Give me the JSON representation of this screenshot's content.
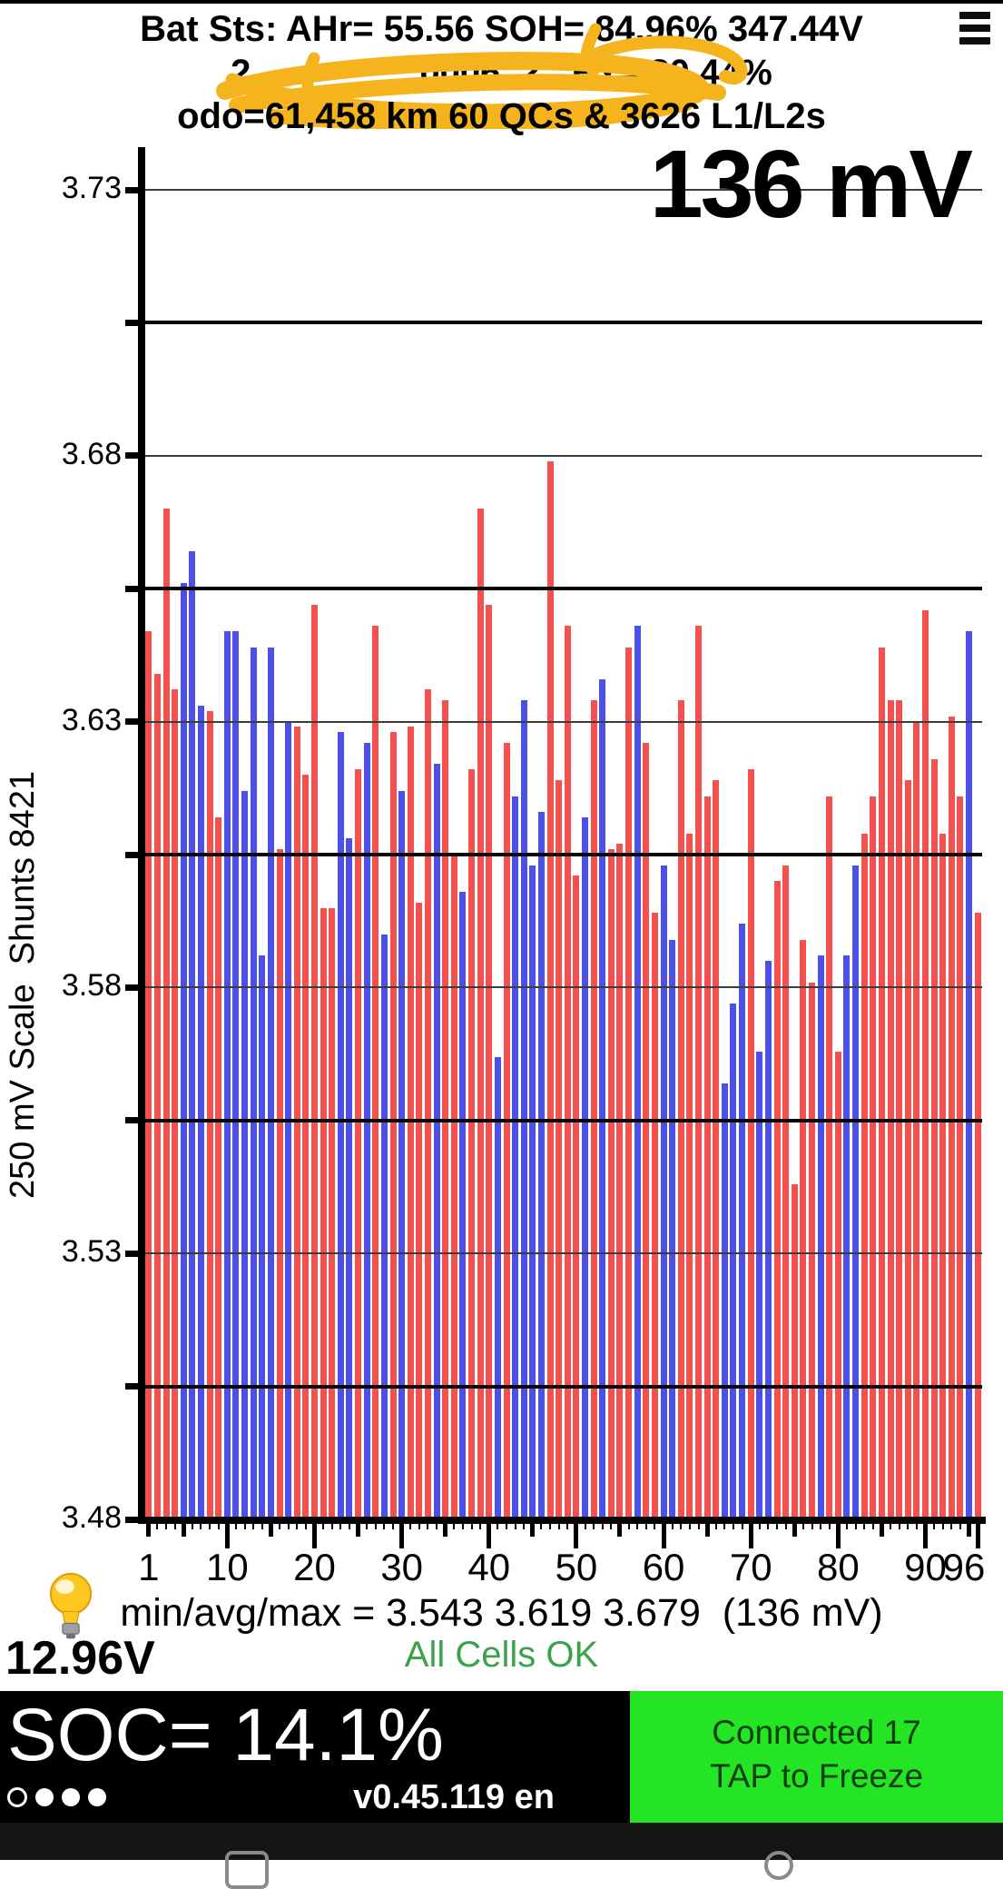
{
  "header": {
    "title": "Bat Sts: AHr= 55.56 SOH= 84.96% 347.44V",
    "menu_icon": "hamburger-icon",
    "vin_fragment_left": "2",
    "vin_fragment_mid": "0006",
    "vin_fragment_right": "2",
    "vin_redaction_color": "#f5b41d",
    "hx_label": "Hx= 80.44%",
    "odo_line": "odo=61,458 km 60 QCs & 3626 L1/L2s"
  },
  "chart": {
    "delta_label": "136 mV",
    "y_axis_title": "250 mV Scale  Shunts 8421"
  },
  "chart_data": {
    "type": "bar",
    "title": "",
    "xlabel": "",
    "ylabel": "250 mV Scale  Shunts 8421",
    "ylim": [
      3.48,
      3.73
    ],
    "x": [
      1,
      2,
      3,
      4,
      5,
      6,
      7,
      8,
      9,
      10,
      11,
      12,
      13,
      14,
      15,
      16,
      17,
      18,
      19,
      20,
      21,
      22,
      23,
      24,
      25,
      26,
      27,
      28,
      29,
      30,
      31,
      32,
      33,
      34,
      35,
      36,
      37,
      38,
      39,
      40,
      41,
      42,
      43,
      44,
      45,
      46,
      47,
      48,
      49,
      50,
      51,
      52,
      53,
      54,
      55,
      56,
      57,
      58,
      59,
      60,
      61,
      62,
      63,
      64,
      65,
      66,
      67,
      68,
      69,
      70,
      71,
      72,
      73,
      74,
      75,
      76,
      77,
      78,
      79,
      80,
      81,
      82,
      83,
      84,
      85,
      86,
      87,
      88,
      89,
      90,
      91,
      92,
      93,
      94,
      95,
      96
    ],
    "values": [
      3.647,
      3.639,
      3.67,
      3.636,
      3.656,
      3.662,
      3.633,
      3.632,
      3.612,
      3.647,
      3.647,
      3.617,
      3.644,
      3.586,
      3.644,
      3.606,
      3.63,
      3.629,
      3.62,
      3.652,
      3.595,
      3.595,
      3.628,
      3.608,
      3.621,
      3.626,
      3.648,
      3.59,
      3.628,
      3.617,
      3.629,
      3.596,
      3.636,
      3.622,
      3.634,
      3.605,
      3.598,
      3.621,
      3.67,
      3.652,
      3.567,
      3.626,
      3.616,
      3.634,
      3.603,
      3.613,
      3.679,
      3.619,
      3.648,
      3.601,
      3.612,
      3.634,
      3.638,
      3.606,
      3.607,
      3.644,
      3.648,
      3.626,
      3.594,
      3.603,
      3.589,
      3.634,
      3.609,
      3.648,
      3.616,
      3.619,
      3.562,
      3.577,
      3.592,
      3.621,
      3.568,
      3.585,
      3.6,
      3.603,
      3.543,
      3.589,
      3.581,
      3.586,
      3.616,
      3.568,
      3.586,
      3.603,
      3.609,
      3.616,
      3.644,
      3.634,
      3.634,
      3.619,
      3.63,
      3.651,
      3.623,
      3.609,
      3.631,
      3.616,
      3.647,
      3.594
    ],
    "shunt": [
      false,
      false,
      false,
      false,
      true,
      true,
      true,
      false,
      false,
      true,
      true,
      true,
      true,
      true,
      true,
      false,
      true,
      false,
      false,
      false,
      false,
      false,
      true,
      true,
      false,
      true,
      false,
      true,
      false,
      true,
      false,
      false,
      false,
      true,
      false,
      false,
      true,
      false,
      false,
      false,
      true,
      false,
      true,
      true,
      true,
      true,
      false,
      false,
      false,
      false,
      true,
      false,
      true,
      false,
      false,
      false,
      true,
      false,
      false,
      true,
      true,
      false,
      false,
      false,
      false,
      false,
      true,
      true,
      true,
      false,
      true,
      true,
      false,
      false,
      false,
      false,
      false,
      true,
      false,
      false,
      true,
      true,
      false,
      false,
      false,
      false,
      false,
      false,
      false,
      false,
      false,
      false,
      false,
      false,
      true,
      false
    ],
    "bar_color_normal": "#f4514e",
    "bar_color_shunt": "#4d50e8",
    "y_tick_labels": [
      "3.73",
      "3.68",
      "3.63",
      "3.58",
      "3.53",
      "3.48"
    ],
    "y_tick_values": [
      3.73,
      3.68,
      3.63,
      3.58,
      3.53,
      3.48
    ],
    "y_minor_tick_values": [
      3.73,
      3.705,
      3.68,
      3.655,
      3.63,
      3.605,
      3.58,
      3.555,
      3.53,
      3.505,
      3.48
    ],
    "y_gridlines": [
      {
        "v": 3.73,
        "heavy": false
      },
      {
        "v": 3.705,
        "heavy": true
      },
      {
        "v": 3.68,
        "heavy": false
      },
      {
        "v": 3.655,
        "heavy": true
      },
      {
        "v": 3.63,
        "heavy": false
      },
      {
        "v": 3.605,
        "heavy": true
      },
      {
        "v": 3.58,
        "heavy": false
      },
      {
        "v": 3.555,
        "heavy": true
      },
      {
        "v": 3.53,
        "heavy": false
      },
      {
        "v": 3.505,
        "heavy": true
      }
    ],
    "x_tick_labels": [
      {
        "label": "1",
        "cell": 1
      },
      {
        "label": "10",
        "cell": 10
      },
      {
        "label": "20",
        "cell": 20
      },
      {
        "label": "30",
        "cell": 30
      },
      {
        "label": "40",
        "cell": 40
      },
      {
        "label": "50",
        "cell": 50
      },
      {
        "label": "60",
        "cell": 60
      },
      {
        "label": "70",
        "cell": 70
      },
      {
        "label": "80",
        "cell": 80
      },
      {
        "label": "90",
        "cell": 90
      },
      {
        "label": "96",
        "cell": 96
      }
    ],
    "grid": true,
    "legend": "none",
    "annotations": [
      "136 mV"
    ]
  },
  "footer": {
    "min_avg_max": "min/avg/max = 3.543 3.619 3.679  (136 mV)",
    "status": "All Cells OK",
    "status_color": "#3ba14b",
    "aux_voltage": "12.96V",
    "bulb_icon": "light-bulb-icon"
  },
  "bottom_bar": {
    "soc": "SOC= 14.1%",
    "version": "v0.45.119 en",
    "connect_line1": "Connected 17",
    "connect_line2": "TAP to Freeze",
    "connect_bg": "#23e523",
    "page_dots_total": 4,
    "page_dots_active_index": 0
  }
}
